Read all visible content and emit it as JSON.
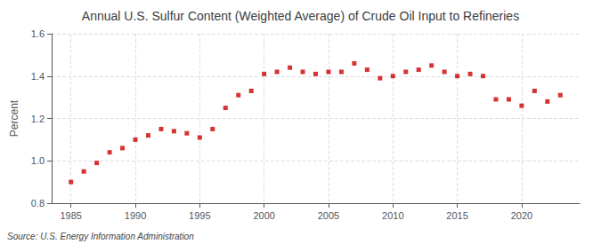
{
  "chart_data": {
    "type": "scatter",
    "title": "Annual U.S. Sulfur Content (Weighted Average) of Crude Oil Input to Refineries",
    "ylabel": "Percent",
    "annotation": "Source: U.S. Energy Information Administration",
    "x": [
      1985,
      1986,
      1987,
      1988,
      1989,
      1990,
      1991,
      1992,
      1993,
      1994,
      1995,
      1996,
      1997,
      1998,
      1999,
      2000,
      2001,
      2002,
      2003,
      2004,
      2005,
      2006,
      2007,
      2008,
      2009,
      2010,
      2011,
      2012,
      2013,
      2014,
      2015,
      2016,
      2017,
      2018,
      2019,
      2020,
      2021,
      2022,
      2023
    ],
    "values": [
      0.9,
      0.95,
      0.99,
      1.04,
      1.06,
      1.1,
      1.12,
      1.15,
      1.14,
      1.13,
      1.11,
      1.15,
      1.25,
      1.31,
      1.33,
      1.41,
      1.42,
      1.44,
      1.42,
      1.41,
      1.42,
      1.42,
      1.46,
      1.43,
      1.39,
      1.4,
      1.42,
      1.43,
      1.45,
      1.42,
      1.4,
      1.41,
      1.4,
      1.29,
      1.29,
      1.26,
      1.33,
      1.28,
      1.31
    ],
    "color": "#cc0000",
    "marker": "square",
    "xlim": [
      1983.5,
      2024.5
    ],
    "xticks": [
      1985,
      1990,
      1995,
      2000,
      2005,
      2010,
      2015,
      2020
    ],
    "ylim": [
      0.8,
      1.6
    ],
    "yticks": [
      0.8,
      {
        "value": 1.0,
        "label": "1.0"
      },
      1.2,
      1.4,
      1.6
    ],
    "grid": true
  }
}
